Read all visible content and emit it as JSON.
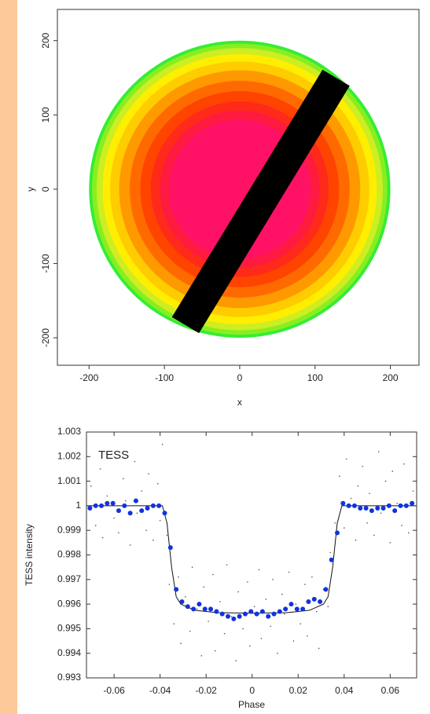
{
  "chart_data": [
    {
      "type": "disk",
      "x_label": "x",
      "y_label": "y",
      "xlim": [
        -242,
        238
      ],
      "ylim": [
        -237,
        242
      ],
      "xticks": [
        -200,
        -100,
        0,
        100,
        200
      ],
      "yticks": [
        -200,
        -100,
        0,
        100,
        200
      ],
      "rings": [
        {
          "radius": 200,
          "color": "#33ee33"
        },
        {
          "radius": 196,
          "color": "#88ee22"
        },
        {
          "radius": 190,
          "color": "#ccee22"
        },
        {
          "radius": 182,
          "color": "#ffee00"
        },
        {
          "radius": 172,
          "color": "#ffcc00"
        },
        {
          "radius": 160,
          "color": "#ff9900"
        },
        {
          "radius": 146,
          "color": "#ff6a00"
        },
        {
          "radius": 132,
          "color": "#ff4400"
        },
        {
          "radius": 118,
          "color": "#ff2a1a"
        },
        {
          "radius": 106,
          "color": "#ff1a40"
        },
        {
          "radius": 94,
          "color": "#ff1166"
        }
      ],
      "band": {
        "x": [
          -72,
          128
        ],
        "y": [
          -183,
          150
        ],
        "width": 42,
        "color": "#000000"
      }
    },
    {
      "type": "scatter",
      "x_label": "Phase",
      "y_label": "TESS intensity",
      "annotation": "TESS",
      "xlim": [
        -0.072,
        0.0715
      ],
      "ylim": [
        0.993,
        1.003
      ],
      "xticks": [
        -0.06,
        -0.04,
        -0.02,
        0,
        0.02,
        0.04,
        0.06
      ],
      "yticks": [
        0.993,
        0.994,
        0.995,
        0.996,
        0.997,
        0.998,
        0.999,
        1,
        1.001,
        1.002,
        1.003
      ],
      "series": [
        {
          "mode": "markers",
          "color": "#555555",
          "size": 0.8,
          "x": [
            -0.07,
            -0.068,
            -0.066,
            -0.065,
            -0.063,
            -0.061,
            -0.06,
            -0.058,
            -0.056,
            -0.055,
            -0.053,
            -0.051,
            -0.05,
            -0.048,
            -0.046,
            -0.045,
            -0.043,
            -0.041,
            -0.04,
            -0.039,
            -0.037,
            -0.036,
            -0.034,
            -0.032,
            -0.031,
            -0.029,
            -0.027,
            -0.026,
            -0.024,
            -0.022,
            -0.021,
            -0.019,
            -0.017,
            -0.016,
            -0.014,
            -0.012,
            -0.011,
            -0.009,
            -0.007,
            -0.006,
            -0.004,
            -0.002,
            -0.001,
            0.001,
            0.003,
            0.004,
            0.006,
            0.008,
            0.009,
            0.011,
            0.013,
            0.014,
            0.016,
            0.018,
            0.019,
            0.021,
            0.023,
            0.024,
            0.026,
            0.028,
            0.029,
            0.031,
            0.033,
            0.034,
            0.036,
            0.038,
            0.04,
            0.041,
            0.043,
            0.045,
            0.046,
            0.048,
            0.05,
            0.051,
            0.053,
            0.055,
            0.056,
            0.058,
            0.06,
            0.061,
            0.063,
            0.065,
            0.066,
            0.068,
            0.07
          ],
          "values": [
            1.0008,
            0.9992,
            1.0015,
            0.9987,
            1.0004,
            1.0021,
            0.9995,
            0.9989,
            1.0011,
            1.0002,
            0.9984,
            1.0018,
            0.9997,
            1.0006,
            0.999,
            1.0013,
            0.9986,
            1.0009,
            0.9994,
            1.0025,
            0.9988,
            0.9968,
            0.9952,
            0.9971,
            0.9944,
            0.9963,
            0.9949,
            0.9975,
            0.9958,
            0.9939,
            0.9967,
            0.9953,
            0.9972,
            0.9941,
            0.9961,
            0.9948,
            0.9976,
            0.9955,
            0.9937,
            0.9965,
            0.995,
            0.9969,
            0.9943,
            0.9959,
            0.9974,
            0.9946,
            0.9962,
            0.9951,
            0.997,
            0.994,
            0.9964,
            0.9956,
            0.9973,
            0.9945,
            0.996,
            0.9952,
            0.9968,
            0.9947,
            0.9971,
            0.9957,
            0.9942,
            0.9966,
            0.9959,
            0.9981,
            0.9993,
            1.0012,
            0.9991,
            1.0019,
            1.0003,
            0.9986,
            1.0008,
            1.0016,
            0.9993,
            1.0005,
            0.9988,
            1.0022,
            0.9997,
            1.001,
            0.9985,
            1.0014,
            1.0001,
            0.9992,
            1.0017,
            0.9989,
            1.0006
          ]
        },
        {
          "mode": "line",
          "color": "#111111",
          "x": [
            -0.072,
            -0.039,
            -0.037,
            -0.035,
            -0.033,
            -0.031,
            -0.025,
            -0.015,
            0,
            0.015,
            0.025,
            0.031,
            0.033,
            0.035,
            0.037,
            0.039,
            0.0715
          ],
          "values": [
            1,
            1,
            0.9993,
            0.9975,
            0.9963,
            0.996,
            0.99575,
            0.99565,
            0.99563,
            0.99565,
            0.99575,
            0.996,
            0.9963,
            0.9975,
            0.9993,
            1,
            1
          ]
        },
        {
          "mode": "markers",
          "color": "#1133dd",
          "size": 3,
          "x": [
            -0.0705,
            -0.068,
            -0.0655,
            -0.063,
            -0.0605,
            -0.058,
            -0.0555,
            -0.053,
            -0.0505,
            -0.048,
            -0.0455,
            -0.043,
            -0.0405,
            -0.038,
            -0.0355,
            -0.033,
            -0.0305,
            -0.028,
            -0.0255,
            -0.023,
            -0.0205,
            -0.018,
            -0.0155,
            -0.013,
            -0.0105,
            -0.008,
            -0.0055,
            -0.003,
            -0.0005,
            0.002,
            0.0045,
            0.007,
            0.0095,
            0.012,
            0.0145,
            0.017,
            0.0195,
            0.022,
            0.0245,
            0.027,
            0.0295,
            0.032,
            0.0345,
            0.037,
            0.0395,
            0.042,
            0.0445,
            0.047,
            0.0495,
            0.052,
            0.0545,
            0.057,
            0.0595,
            0.062,
            0.0645,
            0.067,
            0.0695
          ],
          "values": [
            0.9999,
            1,
            1,
            1.0001,
            1.0001,
            0.9998,
            1,
            0.9997,
            1.0002,
            0.9998,
            0.9999,
            1,
            1,
            0.9997,
            0.9983,
            0.9966,
            0.9961,
            0.9959,
            0.9958,
            0.996,
            0.9958,
            0.9958,
            0.9957,
            0.9956,
            0.9955,
            0.9954,
            0.9955,
            0.9956,
            0.9957,
            0.9956,
            0.9957,
            0.9955,
            0.9956,
            0.9957,
            0.9958,
            0.996,
            0.9958,
            0.9958,
            0.9961,
            0.9962,
            0.9961,
            0.9966,
            0.9978,
            0.9989,
            1.0001,
            1,
            1,
            0.9999,
            0.9999,
            0.9998,
            0.9999,
            0.9999,
            1,
            0.9998,
            1,
            1,
            1.0001
          ]
        }
      ]
    }
  ]
}
